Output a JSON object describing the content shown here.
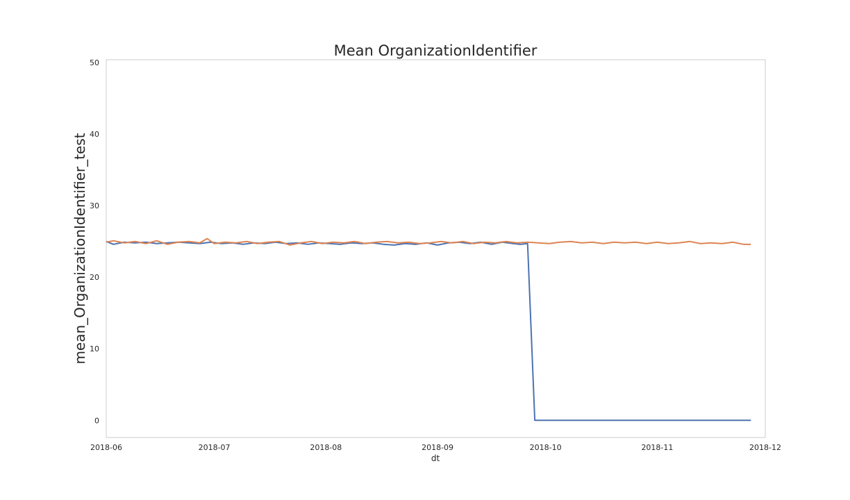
{
  "chart_data": {
    "type": "line",
    "title": "Mean OrganizationIdentifier",
    "xlabel": "dt",
    "ylabel": "mean_OrganizationIdentifier_test",
    "ylim": [
      -2.4,
      50.4
    ],
    "xlim": [
      "2018-06-01",
      "2018-12-01"
    ],
    "grid": false,
    "legend": "none",
    "x_ticks": [
      "2018-06",
      "2018-07",
      "2018-08",
      "2018-09",
      "2018-10",
      "2018-11",
      "2018-12"
    ],
    "y_ticks": [
      0,
      10,
      20,
      30,
      40,
      50
    ],
    "series": [
      {
        "color": "#4c72b0",
        "points": [
          [
            "2018-06-01",
            25.0
          ],
          [
            "2018-06-03",
            24.6
          ],
          [
            "2018-06-06",
            24.9
          ],
          [
            "2018-06-09",
            24.8
          ],
          [
            "2018-06-12",
            24.9
          ],
          [
            "2018-06-15",
            24.7
          ],
          [
            "2018-06-18",
            24.8
          ],
          [
            "2018-06-21",
            24.9
          ],
          [
            "2018-06-24",
            24.8
          ],
          [
            "2018-06-27",
            24.7
          ],
          [
            "2018-06-30",
            24.9
          ],
          [
            "2018-07-03",
            24.7
          ],
          [
            "2018-07-06",
            24.8
          ],
          [
            "2018-07-09",
            24.6
          ],
          [
            "2018-07-12",
            24.8
          ],
          [
            "2018-07-15",
            24.7
          ],
          [
            "2018-07-18",
            24.9
          ],
          [
            "2018-07-21",
            24.7
          ],
          [
            "2018-07-24",
            24.8
          ],
          [
            "2018-07-27",
            24.6
          ],
          [
            "2018-07-30",
            24.8
          ],
          [
            "2018-08-02",
            24.7
          ],
          [
            "2018-08-05",
            24.6
          ],
          [
            "2018-08-08",
            24.8
          ],
          [
            "2018-08-11",
            24.7
          ],
          [
            "2018-08-14",
            24.8
          ],
          [
            "2018-08-17",
            24.6
          ],
          [
            "2018-08-20",
            24.5
          ],
          [
            "2018-08-23",
            24.7
          ],
          [
            "2018-08-26",
            24.6
          ],
          [
            "2018-08-29",
            24.8
          ],
          [
            "2018-09-01",
            24.5
          ],
          [
            "2018-09-04",
            24.8
          ],
          [
            "2018-09-07",
            24.9
          ],
          [
            "2018-09-10",
            24.7
          ],
          [
            "2018-09-13",
            24.9
          ],
          [
            "2018-09-16",
            24.6
          ],
          [
            "2018-09-19",
            24.9
          ],
          [
            "2018-09-22",
            24.7
          ],
          [
            "2018-09-24",
            24.6
          ],
          [
            "2018-09-26",
            24.7
          ],
          [
            "2018-09-28",
            0.0
          ],
          [
            "2018-10-10",
            0.0
          ],
          [
            "2018-10-25",
            0.0
          ],
          [
            "2018-11-10",
            0.0
          ],
          [
            "2018-11-27",
            0.0
          ]
        ]
      },
      {
        "color": "#dd8452",
        "points": [
          [
            "2018-06-01",
            24.9
          ],
          [
            "2018-06-03",
            25.1
          ],
          [
            "2018-06-06",
            24.8
          ],
          [
            "2018-06-09",
            25.0
          ],
          [
            "2018-06-12",
            24.7
          ],
          [
            "2018-06-15",
            25.1
          ],
          [
            "2018-06-18",
            24.6
          ],
          [
            "2018-06-21",
            24.9
          ],
          [
            "2018-06-24",
            25.0
          ],
          [
            "2018-06-27",
            24.8
          ],
          [
            "2018-06-29",
            25.4
          ],
          [
            "2018-07-01",
            24.7
          ],
          [
            "2018-07-04",
            24.9
          ],
          [
            "2018-07-07",
            24.8
          ],
          [
            "2018-07-10",
            25.0
          ],
          [
            "2018-07-13",
            24.7
          ],
          [
            "2018-07-16",
            24.9
          ],
          [
            "2018-07-19",
            25.0
          ],
          [
            "2018-07-22",
            24.5
          ],
          [
            "2018-07-25",
            24.8
          ],
          [
            "2018-07-28",
            25.0
          ],
          [
            "2018-07-31",
            24.7
          ],
          [
            "2018-08-03",
            24.9
          ],
          [
            "2018-08-06",
            24.8
          ],
          [
            "2018-08-09",
            25.0
          ],
          [
            "2018-08-12",
            24.7
          ],
          [
            "2018-08-15",
            24.9
          ],
          [
            "2018-08-18",
            25.0
          ],
          [
            "2018-08-21",
            24.8
          ],
          [
            "2018-08-24",
            24.9
          ],
          [
            "2018-08-27",
            24.7
          ],
          [
            "2018-08-30",
            24.8
          ],
          [
            "2018-09-02",
            25.0
          ],
          [
            "2018-09-05",
            24.8
          ],
          [
            "2018-09-08",
            25.0
          ],
          [
            "2018-09-11",
            24.7
          ],
          [
            "2018-09-14",
            24.9
          ],
          [
            "2018-09-17",
            24.8
          ],
          [
            "2018-09-20",
            25.0
          ],
          [
            "2018-09-23",
            24.8
          ],
          [
            "2018-09-26",
            24.9
          ],
          [
            "2018-09-29",
            24.8
          ],
          [
            "2018-10-02",
            24.7
          ],
          [
            "2018-10-05",
            24.9
          ],
          [
            "2018-10-08",
            25.0
          ],
          [
            "2018-10-11",
            24.8
          ],
          [
            "2018-10-14",
            24.9
          ],
          [
            "2018-10-17",
            24.7
          ],
          [
            "2018-10-20",
            24.9
          ],
          [
            "2018-10-23",
            24.8
          ],
          [
            "2018-10-26",
            24.9
          ],
          [
            "2018-10-29",
            24.7
          ],
          [
            "2018-11-01",
            24.9
          ],
          [
            "2018-11-04",
            24.7
          ],
          [
            "2018-11-07",
            24.8
          ],
          [
            "2018-11-10",
            25.0
          ],
          [
            "2018-11-13",
            24.7
          ],
          [
            "2018-11-16",
            24.8
          ],
          [
            "2018-11-19",
            24.7
          ],
          [
            "2018-11-22",
            24.9
          ],
          [
            "2018-11-25",
            24.6
          ],
          [
            "2018-11-27",
            24.6
          ]
        ]
      }
    ]
  }
}
